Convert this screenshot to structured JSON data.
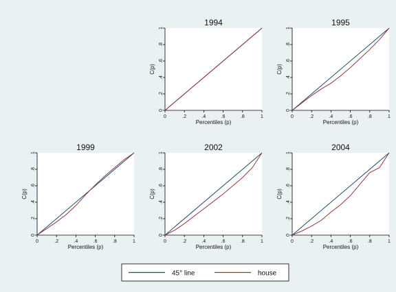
{
  "colors": {
    "background": "#eaf1f3",
    "plot_bg": "#ffffff",
    "diag_line": "#1a476f",
    "house_line": "#90353b"
  },
  "legend": {
    "entries": [
      "45° line",
      "house"
    ],
    "placement": "bottom-center"
  },
  "chart_data": [
    {
      "type": "line",
      "title": "1994",
      "xlabel": "Percentiles (p)",
      "ylabel": "C(p)",
      "xlim": [
        0,
        1
      ],
      "ylim": [
        0,
        1
      ],
      "xticks": [
        "0",
        ".2",
        ".4",
        ".6",
        ".8",
        "1"
      ],
      "yticks": [
        "0",
        ".2",
        ".4",
        ".6",
        ".8",
        "1"
      ],
      "series": [
        {
          "name": "45° line",
          "x": [
            0,
            1
          ],
          "y": [
            0,
            1
          ]
        },
        {
          "name": "house",
          "x": [
            0,
            0.25,
            0.5,
            0.75,
            1
          ],
          "y": [
            0,
            0.25,
            0.5,
            0.75,
            1
          ]
        }
      ]
    },
    {
      "type": "line",
      "title": "1995",
      "xlabel": "Percentiles (p)",
      "ylabel": "C(p)",
      "xlim": [
        0,
        1
      ],
      "ylim": [
        0,
        1
      ],
      "xticks": [
        "0",
        ".2",
        ".4",
        ".6",
        ".8",
        "1"
      ],
      "yticks": [
        "0",
        ".2",
        ".4",
        ".6",
        ".8",
        "1"
      ],
      "series": [
        {
          "name": "45° line",
          "x": [
            0,
            1
          ],
          "y": [
            0,
            1
          ]
        },
        {
          "name": "house",
          "x": [
            0,
            0.1,
            0.2,
            0.3,
            0.4,
            0.5,
            0.6,
            0.7,
            0.8,
            0.9,
            1
          ],
          "y": [
            0,
            0.09,
            0.18,
            0.26,
            0.33,
            0.42,
            0.52,
            0.63,
            0.74,
            0.86,
            1
          ]
        }
      ]
    },
    {
      "type": "line",
      "title": "1999",
      "xlabel": "Percentiles (p)",
      "ylabel": "C(p)",
      "xlim": [
        0,
        1
      ],
      "ylim": [
        0,
        1
      ],
      "xticks": [
        "0",
        ".2",
        ".4",
        ".6",
        ".8",
        "1"
      ],
      "yticks": [
        "0",
        ".2",
        ".4",
        ".6",
        ".8",
        "1"
      ],
      "series": [
        {
          "name": "45° line",
          "x": [
            0,
            1
          ],
          "y": [
            0,
            1
          ]
        },
        {
          "name": "house",
          "x": [
            0,
            0.1,
            0.2,
            0.3,
            0.4,
            0.5,
            0.6,
            0.7,
            0.8,
            0.9,
            1
          ],
          "y": [
            0,
            0.08,
            0.16,
            0.25,
            0.36,
            0.49,
            0.61,
            0.72,
            0.82,
            0.92,
            1
          ]
        }
      ]
    },
    {
      "type": "line",
      "title": "2002",
      "xlabel": "Percentiles (p)",
      "ylabel": "C(p)",
      "xlim": [
        0,
        1
      ],
      "ylim": [
        0,
        1
      ],
      "xticks": [
        "0",
        ".2",
        ".4",
        ".6",
        ".8",
        "1"
      ],
      "yticks": [
        "0",
        ".2",
        ".4",
        ".6",
        ".8",
        "1"
      ],
      "series": [
        {
          "name": "45° line",
          "x": [
            0,
            1
          ],
          "y": [
            0,
            1
          ]
        },
        {
          "name": "house",
          "x": [
            0,
            0.1,
            0.2,
            0.3,
            0.4,
            0.5,
            0.6,
            0.7,
            0.8,
            0.9,
            1
          ],
          "y": [
            0,
            0.06,
            0.14,
            0.23,
            0.32,
            0.41,
            0.5,
            0.6,
            0.7,
            0.82,
            1
          ]
        }
      ]
    },
    {
      "type": "line",
      "title": "2004",
      "xlabel": "Percentiles (p)",
      "ylabel": "C(p)",
      "xlim": [
        0,
        1
      ],
      "ylim": [
        0,
        1
      ],
      "xticks": [
        "0",
        ".2",
        ".4",
        ".6",
        ".8",
        "1"
      ],
      "yticks": [
        "0",
        ".2",
        ".4",
        ".6",
        ".8",
        "1"
      ],
      "series": [
        {
          "name": "45° line",
          "x": [
            0,
            1
          ],
          "y": [
            0,
            1
          ]
        },
        {
          "name": "house",
          "x": [
            0,
            0.1,
            0.2,
            0.3,
            0.4,
            0.5,
            0.6,
            0.7,
            0.8,
            0.9,
            1
          ],
          "y": [
            0,
            0.05,
            0.11,
            0.18,
            0.28,
            0.37,
            0.48,
            0.62,
            0.76,
            0.82,
            1
          ]
        }
      ]
    }
  ]
}
